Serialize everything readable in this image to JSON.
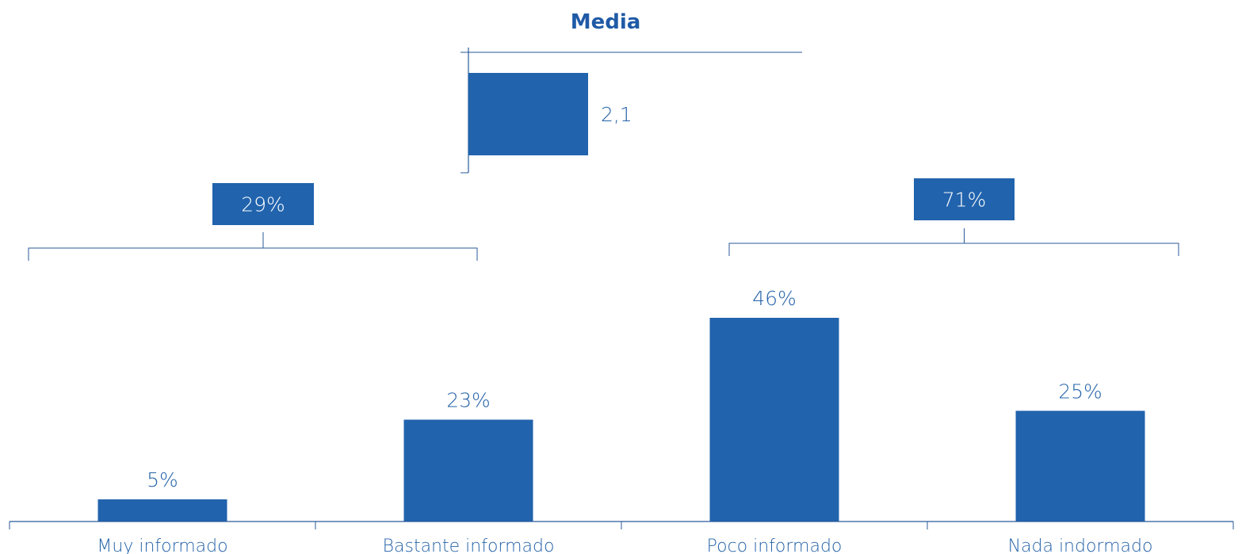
{
  "colors": {
    "bar": "#2163ad",
    "text": "#2e63a8",
    "axis": "#2a5a9a",
    "title": "#1f5aa6"
  },
  "chart_data": [
    {
      "type": "bar",
      "orientation": "vertical",
      "categories": [
        "Muy informado",
        "Bastante informado",
        "Poco informado",
        "Nada indormado"
      ],
      "values": [
        5,
        23,
        46,
        25
      ],
      "value_labels": [
        "5%",
        "23%",
        "46%",
        "25%"
      ],
      "unit": "%",
      "groups": [
        {
          "label": "29%",
          "value": 29,
          "categories": [
            "Muy informado",
            "Bastante informado"
          ]
        },
        {
          "label": "71%",
          "value": 71,
          "categories": [
            "Poco informado",
            "Nada indormado"
          ]
        }
      ],
      "ylim": [
        0,
        50
      ],
      "grid": false
    },
    {
      "type": "bar",
      "orientation": "horizontal",
      "title": "Media",
      "values": [
        2.1
      ],
      "value_labels": [
        "2,1"
      ],
      "xlim": [
        0,
        3
      ]
    }
  ]
}
